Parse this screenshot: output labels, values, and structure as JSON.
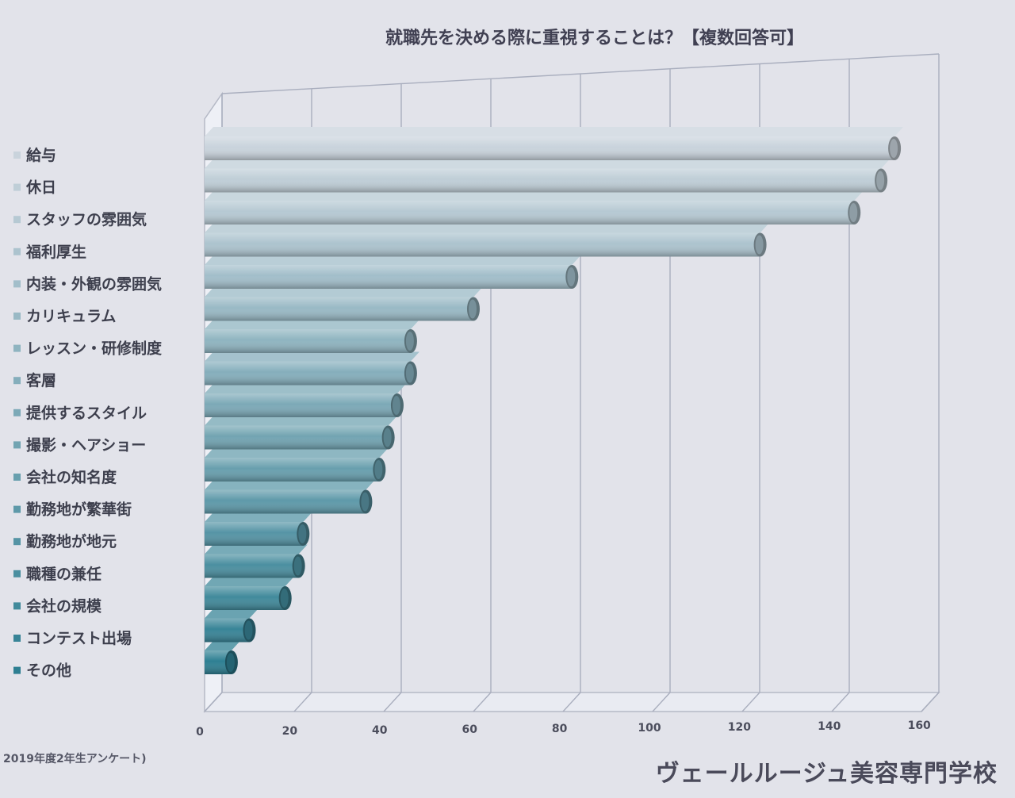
{
  "chart_data": {
    "type": "bar",
    "orientation": "horizontal",
    "title": "就職先を決める際に重視することは？【複数回答可】",
    "categories": [
      "給与",
      "休日",
      "スタッフの雰囲気",
      "福利厚生",
      "内装・外観の雰囲気",
      "カリキュラム",
      "レッスン・研修制度",
      "客層",
      "提供するスタイル",
      "撮影・ヘアショー",
      "会社の知名度",
      "勤務地が繁華街",
      "勤務地が地元",
      "職種の兼任",
      "会社の規模",
      "コンテスト出場",
      "その他"
    ],
    "values": [
      154,
      151,
      145,
      124,
      82,
      60,
      46,
      46,
      43,
      41,
      39,
      36,
      22,
      21,
      18,
      10,
      6
    ],
    "xlim": [
      0,
      160
    ],
    "xticks": [
      0,
      20,
      40,
      60,
      80,
      100,
      120,
      140,
      160
    ],
    "grid": true,
    "legend_placement": "left",
    "colors": {
      "top": "#c9d3dc",
      "bottom": "#2e7f92"
    }
  },
  "footer": {
    "survey_note": "2019年度2年生アンケート)",
    "school_name": "ヴェールルージュ美容専門学校"
  }
}
